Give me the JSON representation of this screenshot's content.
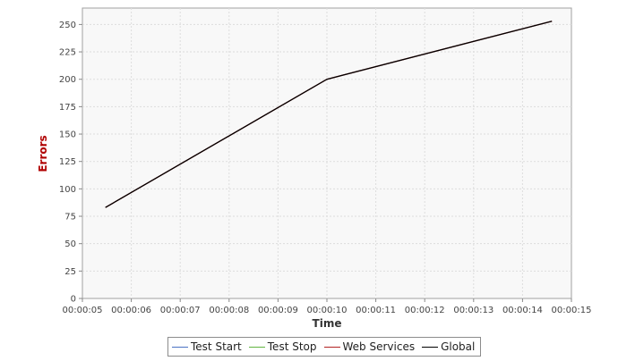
{
  "chart_data": {
    "type": "line",
    "xlabel": "Time",
    "ylabel": "Errors",
    "x_tick_labels": [
      "00:00:05",
      "00:00:06",
      "00:00:07",
      "00:00:08",
      "00:00:09",
      "00:00:10",
      "00:00:11",
      "00:00:12",
      "00:00:13",
      "00:00:14",
      "00:00:15"
    ],
    "x_range_seconds": [
      5,
      15
    ],
    "y_ticks": [
      0,
      25,
      50,
      75,
      100,
      125,
      150,
      175,
      200,
      225,
      250
    ],
    "ylim": [
      0,
      265
    ],
    "grid": true,
    "legend_position": "bottom",
    "series": [
      {
        "name": "Test Start",
        "color": "#4a72c4",
        "points": []
      },
      {
        "name": "Test Stop",
        "color": "#60b540",
        "points": []
      },
      {
        "name": "Web Services",
        "color": "#b22222",
        "points": [
          {
            "x": "00:00:05.47",
            "y": 83
          },
          {
            "x": "00:00:10",
            "y": 200
          },
          {
            "x": "00:00:14.6",
            "y": 253
          }
        ]
      },
      {
        "name": "Global",
        "color": "#000000",
        "points": [
          {
            "x": "00:00:05.47",
            "y": 83
          },
          {
            "x": "00:00:10",
            "y": 200
          },
          {
            "x": "00:00:14.6",
            "y": 253
          }
        ]
      }
    ],
    "colors": {
      "ylabel": "#b00000",
      "xlabel": "#333333",
      "plot_background": "#f8f8f8",
      "grid": "#dddddd"
    }
  }
}
